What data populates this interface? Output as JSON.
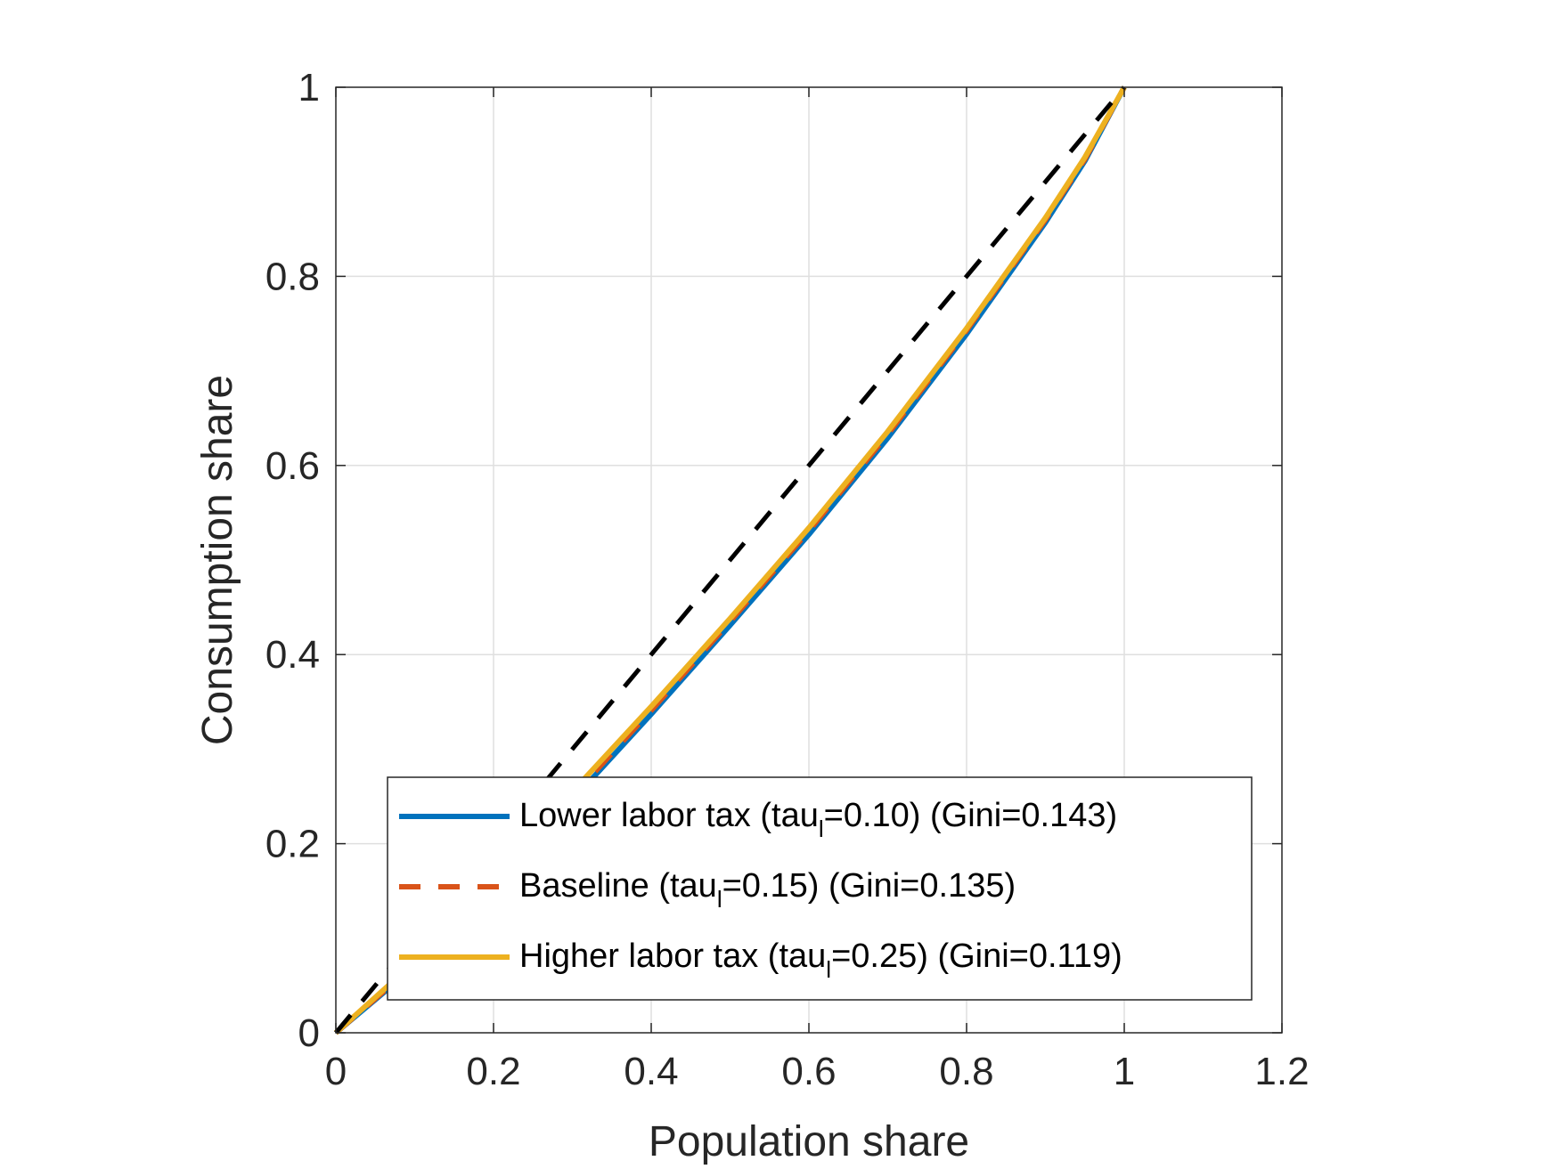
{
  "chart_data": {
    "type": "line",
    "title": "",
    "xlabel": "Population share",
    "ylabel": "Consumption share",
    "xlim": [
      0,
      1.2
    ],
    "ylim": [
      0,
      1
    ],
    "xticks": [
      0,
      0.2,
      0.4,
      0.6,
      0.8,
      1,
      1.2
    ],
    "yticks": [
      0,
      0.2,
      0.4,
      0.6,
      0.8,
      1
    ],
    "xtick_labels": [
      "0",
      "0.2",
      "0.4",
      "0.6",
      "0.8",
      "1",
      "1.2"
    ],
    "ytick_labels": [
      "0",
      "0.2",
      "0.4",
      "0.6",
      "0.8",
      "1"
    ],
    "grid": true,
    "legend_position": "bottom-right",
    "series": [
      {
        "name": "Lower labor tax (tau_l=0.10) (Gini=0.143)",
        "legend_main": "Lower labor tax (tau",
        "legend_sub": "l",
        "legend_tail": "=0.10) (Gini=0.143)",
        "color": "#0072BD",
        "style": "solid",
        "x": [
          0,
          0.1,
          0.2,
          0.3,
          0.4,
          0.5,
          0.6,
          0.7,
          0.8,
          0.9,
          0.95,
          1
        ],
        "y": [
          0,
          0.07,
          0.156,
          0.246,
          0.337,
          0.431,
          0.527,
          0.629,
          0.739,
          0.857,
          0.922,
          1
        ]
      },
      {
        "name": "Baseline (tau_l=0.15) (Gini=0.135)",
        "legend_main": "Baseline (tau",
        "legend_sub": "l",
        "legend_tail": "=0.15) (Gini=0.135)",
        "color": "#D95319",
        "style": "dashed",
        "x": [
          0,
          0.1,
          0.2,
          0.3,
          0.4,
          0.5,
          0.6,
          0.7,
          0.8,
          0.9,
          0.95,
          1
        ],
        "y": [
          0,
          0.072,
          0.16,
          0.25,
          0.341,
          0.435,
          0.531,
          0.633,
          0.743,
          0.86,
          0.924,
          1
        ]
      },
      {
        "name": "Higher labor tax (tau_l=0.25) (Gini=0.119)",
        "legend_main": "Higher labor tax (tau",
        "legend_sub": "l",
        "legend_tail": "=0.25) (Gini=0.119)",
        "color": "#EDB120",
        "style": "solid",
        "x": [
          0,
          0.1,
          0.2,
          0.3,
          0.4,
          0.5,
          0.6,
          0.7,
          0.8,
          0.9,
          0.95,
          1
        ],
        "y": [
          0,
          0.075,
          0.165,
          0.255,
          0.345,
          0.438,
          0.534,
          0.636,
          0.745,
          0.862,
          0.926,
          1
        ]
      },
      {
        "name": "",
        "color": "#000000",
        "style": "dashed",
        "x": [
          0,
          1
        ],
        "y": [
          0,
          1
        ]
      }
    ]
  }
}
